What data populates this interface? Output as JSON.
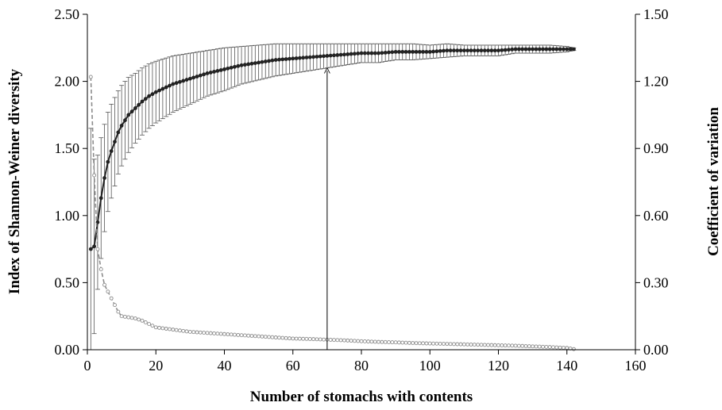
{
  "chart_data": {
    "type": "line",
    "x_axis": {
      "label": "Number of stomachs with contents",
      "range": [
        0,
        160
      ],
      "ticks": [
        0,
        20,
        40,
        60,
        80,
        100,
        120,
        140,
        160
      ],
      "tick_labels": [
        "0",
        "20",
        "40",
        "60",
        "80",
        "100",
        "120",
        "140",
        "160"
      ]
    },
    "y_axis_left": {
      "label": "Index of Shannon-Weiner  diversity",
      "range": [
        0,
        2.5
      ],
      "ticks": [
        0,
        0.5,
        1,
        1.5,
        2,
        2.5
      ],
      "tick_labels": [
        "0.00",
        "0.50",
        "1.00",
        "1.50",
        "2.00",
        "2.50"
      ]
    },
    "y_axis_right": {
      "label": "Coefficient of variation",
      "range": [
        0,
        1.5
      ],
      "ticks": [
        0,
        0.3,
        0.6,
        0.9,
        1.2,
        1.5
      ],
      "tick_labels": [
        "0.00",
        "0.30",
        "0.60",
        "0.90",
        "1.20",
        "1.50"
      ]
    },
    "grid": false,
    "legend": "none",
    "series": [
      {
        "axis": "left",
        "style": "solid line with filled markers and error bars",
        "color": "#222222",
        "x": [
          1,
          2,
          3,
          4,
          5,
          6,
          7,
          8,
          9,
          10,
          12,
          14,
          16,
          18,
          20,
          25,
          30,
          35,
          40,
          45,
          50,
          55,
          60,
          65,
          70,
          75,
          80,
          85,
          90,
          95,
          100,
          105,
          110,
          115,
          120,
          125,
          130,
          135,
          140,
          142
        ],
        "y": [
          0.75,
          0.77,
          0.95,
          1.13,
          1.28,
          1.4,
          1.48,
          1.55,
          1.62,
          1.67,
          1.75,
          1.8,
          1.85,
          1.89,
          1.92,
          1.98,
          2.02,
          2.06,
          2.09,
          2.12,
          2.14,
          2.16,
          2.17,
          2.18,
          2.19,
          2.2,
          2.21,
          2.21,
          2.22,
          2.22,
          2.22,
          2.23,
          2.23,
          2.23,
          2.23,
          2.24,
          2.24,
          2.24,
          2.24,
          2.24
        ],
        "error": [
          0.9,
          0.65,
          0.5,
          0.45,
          0.4,
          0.37,
          0.35,
          0.33,
          0.31,
          0.3,
          0.28,
          0.26,
          0.25,
          0.24,
          0.23,
          0.21,
          0.19,
          0.17,
          0.16,
          0.14,
          0.13,
          0.12,
          0.11,
          0.1,
          0.09,
          0.08,
          0.07,
          0.07,
          0.06,
          0.06,
          0.05,
          0.05,
          0.04,
          0.04,
          0.04,
          0.03,
          0.03,
          0.03,
          0.02,
          0.01
        ]
      },
      {
        "axis": "right",
        "style": "dashed line with hollow markers",
        "color": "#8c8c8c",
        "x": [
          1,
          2,
          3,
          4,
          5,
          6,
          7,
          8,
          9,
          10,
          12,
          14,
          16,
          18,
          20,
          25,
          30,
          35,
          40,
          45,
          50,
          55,
          60,
          65,
          70,
          75,
          80,
          85,
          90,
          95,
          100,
          105,
          110,
          115,
          120,
          125,
          130,
          135,
          140,
          142
        ],
        "y": [
          1.22,
          0.78,
          0.45,
          0.36,
          0.29,
          0.26,
          0.23,
          0.2,
          0.17,
          0.15,
          0.145,
          0.14,
          0.13,
          0.115,
          0.1,
          0.09,
          0.08,
          0.075,
          0.07,
          0.065,
          0.06,
          0.055,
          0.05,
          0.048,
          0.045,
          0.042,
          0.038,
          0.035,
          0.033,
          0.03,
          0.028,
          0.026,
          0.024,
          0.022,
          0.02,
          0.018,
          0.015,
          0.012,
          0.008,
          0.003
        ]
      }
    ],
    "annotations": [
      {
        "type": "arrow",
        "x": 70,
        "from_y": 0,
        "to_y": 2.08,
        "axis": "left"
      }
    ]
  }
}
